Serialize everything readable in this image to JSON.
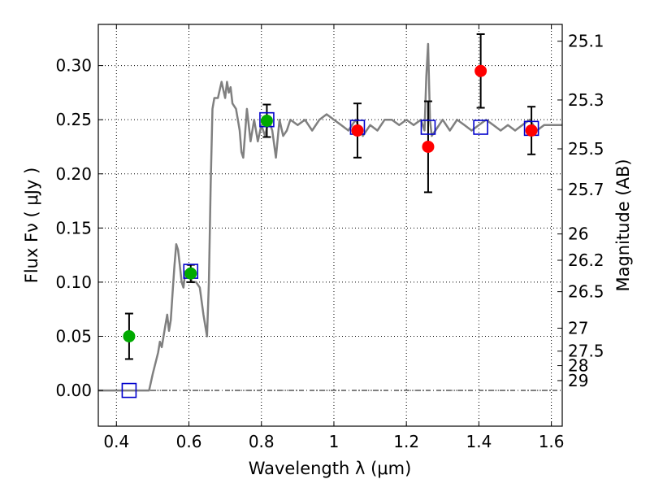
{
  "chart_data": {
    "type": "scatter",
    "xlabel": "Wavelength  λ (μm)",
    "ylabel": "Flux  Fν  ( μJy )",
    "ylabel_right": "Magnitude (AB)",
    "xlim": [
      0.35,
      1.63
    ],
    "ylim": [
      -0.033,
      0.338
    ],
    "grid": true,
    "x_ticks": [
      0.4,
      0.6,
      0.8,
      1.0,
      1.2,
      1.4,
      1.6
    ],
    "x_tick_labels": [
      "0.4",
      "0.6",
      "0.8",
      "1",
      "1.2",
      "1.4",
      "1.6"
    ],
    "y_ticks": [
      0.0,
      0.05,
      0.1,
      0.15,
      0.2,
      0.25,
      0.3
    ],
    "y_tick_labels": [
      "0.00",
      "0.05",
      "0.10",
      "0.15",
      "0.20",
      "0.25",
      "0.30"
    ],
    "right_ticks": [
      {
        "label": "25.1",
        "flux": 0.3225
      },
      {
        "label": "25.3",
        "flux": 0.2682
      },
      {
        "label": "25.5",
        "flux": 0.2231
      },
      {
        "label": "25.7",
        "flux": 0.1855
      },
      {
        "label": "26",
        "flux": 0.1445
      },
      {
        "label": "26.2",
        "flux": 0.1202
      },
      {
        "label": "26.5",
        "flux": 0.0912
      },
      {
        "label": "27",
        "flux": 0.0575
      },
      {
        "label": "27.5",
        "flux": 0.0363
      },
      {
        "label": "28",
        "flux": 0.0229
      },
      {
        "label": "29",
        "flux": 0.0091
      }
    ],
    "series": [
      {
        "type": "line",
        "color": "#808080",
        "x": [
          0.35,
          0.4,
          0.45,
          0.49,
          0.5,
          0.515,
          0.52,
          0.525,
          0.53,
          0.535,
          0.54,
          0.545,
          0.55,
          0.555,
          0.56,
          0.565,
          0.57,
          0.575,
          0.58,
          0.585,
          0.59,
          0.6,
          0.61,
          0.62,
          0.63,
          0.64,
          0.65,
          0.655,
          0.66,
          0.665,
          0.67,
          0.68,
          0.69,
          0.7,
          0.705,
          0.71,
          0.715,
          0.72,
          0.73,
          0.74,
          0.745,
          0.75,
          0.76,
          0.77,
          0.78,
          0.79,
          0.8,
          0.81,
          0.82,
          0.83,
          0.84,
          0.85,
          0.86,
          0.87,
          0.88,
          0.9,
          0.92,
          0.94,
          0.96,
          0.98,
          1.0,
          1.02,
          1.04,
          1.06,
          1.08,
          1.1,
          1.12,
          1.14,
          1.16,
          1.18,
          1.2,
          1.22,
          1.24,
          1.25,
          1.255,
          1.26,
          1.265,
          1.27,
          1.28,
          1.3,
          1.32,
          1.34,
          1.36,
          1.38,
          1.4,
          1.42,
          1.44,
          1.46,
          1.48,
          1.5,
          1.52,
          1.54,
          1.56,
          1.58,
          1.6,
          1.63
        ],
        "y": [
          0.0,
          0.0,
          0.0,
          0.0,
          0.015,
          0.035,
          0.045,
          0.04,
          0.05,
          0.06,
          0.07,
          0.055,
          0.065,
          0.09,
          0.115,
          0.135,
          0.13,
          0.115,
          0.1,
          0.095,
          0.11,
          0.105,
          0.1,
          0.1,
          0.095,
          0.07,
          0.05,
          0.1,
          0.19,
          0.26,
          0.27,
          0.27,
          0.285,
          0.27,
          0.285,
          0.275,
          0.28,
          0.265,
          0.26,
          0.24,
          0.22,
          0.215,
          0.26,
          0.23,
          0.25,
          0.23,
          0.245,
          0.235,
          0.25,
          0.24,
          0.215,
          0.25,
          0.235,
          0.24,
          0.25,
          0.245,
          0.25,
          0.24,
          0.25,
          0.255,
          0.25,
          0.245,
          0.24,
          0.25,
          0.235,
          0.245,
          0.24,
          0.25,
          0.25,
          0.245,
          0.25,
          0.245,
          0.25,
          0.24,
          0.29,
          0.32,
          0.25,
          0.235,
          0.24,
          0.25,
          0.24,
          0.25,
          0.245,
          0.24,
          0.245,
          0.25,
          0.245,
          0.24,
          0.245,
          0.24,
          0.245,
          0.25,
          0.24,
          0.245,
          0.245,
          0.245
        ]
      },
      {
        "type": "points",
        "marker": "square-open",
        "color": "#0000cc",
        "x": [
          0.435,
          0.605,
          0.815,
          1.065,
          1.26,
          1.405,
          1.545
        ],
        "y": [
          0.0,
          0.11,
          0.25,
          0.243,
          0.243,
          0.243,
          0.242
        ]
      },
      {
        "type": "points",
        "marker": "circle",
        "color": "#00aa00",
        "x": [
          0.435,
          0.605,
          0.815
        ],
        "y": [
          0.05,
          0.108,
          0.249
        ],
        "yerr": [
          0.021,
          0.008,
          0.015
        ]
      },
      {
        "type": "points",
        "marker": "circle",
        "color": "#ff0000",
        "x": [
          1.065,
          1.26,
          1.405,
          1.545
        ],
        "y": [
          0.24,
          0.225,
          0.295,
          0.24
        ],
        "yerr": [
          0.025,
          0.042,
          0.034,
          0.022
        ]
      }
    ],
    "zero_line": {
      "y": 0.0,
      "x_from": 0.35,
      "x_to": 1.63,
      "style": "dash-dot"
    }
  }
}
